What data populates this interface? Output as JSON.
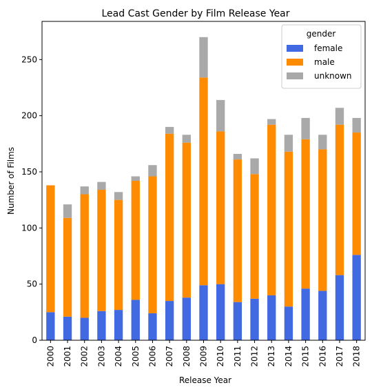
{
  "chart_data": {
    "type": "bar",
    "stacked": true,
    "title": "Lead Cast Gender by Film Release Year",
    "xlabel": "Release Year",
    "ylabel": "Number of Films",
    "ylim": [
      0,
      284
    ],
    "yticks": [
      0,
      50,
      100,
      150,
      200,
      250
    ],
    "grid": false,
    "legend": {
      "title": "gender",
      "placement": "top-right"
    },
    "categories": [
      "2000",
      "2001",
      "2002",
      "2003",
      "2004",
      "2005",
      "2006",
      "2007",
      "2008",
      "2009",
      "2010",
      "2011",
      "2012",
      "2013",
      "2014",
      "2015",
      "2016",
      "2017",
      "2018"
    ],
    "series": [
      {
        "name": "female",
        "color": "#4169e1",
        "values": [
          25,
          21,
          20,
          26,
          27,
          36,
          24,
          35,
          38,
          49,
          50,
          34,
          37,
          40,
          30,
          46,
          44,
          58,
          76
        ]
      },
      {
        "name": "male",
        "color": "#ff8c00",
        "values": [
          113,
          88,
          110,
          108,
          98,
          106,
          122,
          149,
          138,
          185,
          136,
          127,
          111,
          152,
          138,
          133,
          126,
          134,
          109
        ]
      },
      {
        "name": "unknown",
        "color": "#a9a9a9",
        "values": [
          0,
          12,
          7,
          7,
          7,
          4,
          10,
          6,
          7,
          36,
          28,
          5,
          14,
          5,
          15,
          19,
          13,
          15,
          13
        ]
      }
    ]
  }
}
